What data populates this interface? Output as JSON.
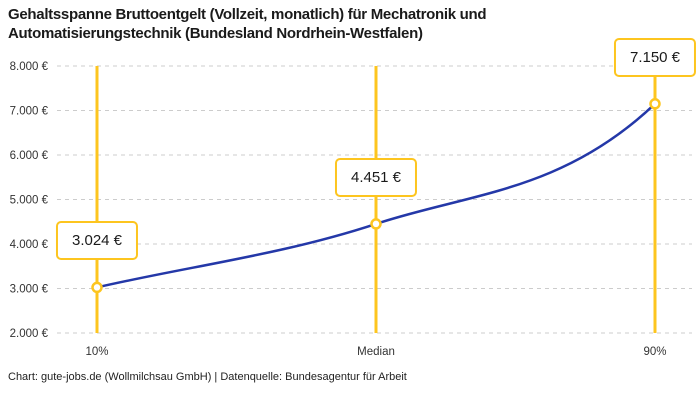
{
  "title_lines": [
    "Gehaltsspanne Bruttoentgelt (Vollzeit, monatlich) für Mechatronik und",
    "Automatisierungstechnik (Bundesland Nordrhein-Westfalen)"
  ],
  "footer": "Chart: gute-jobs.de (Wollmilchsau GmbH) | Datenquelle: Bundesagentur für Arbeit",
  "colors": {
    "accent_yellow": "#fdc51f",
    "curve_blue": "#2438a8",
    "grid_gray": "#cccccc",
    "text_dark": "#1a1a1a",
    "tick_gray": "#333333"
  },
  "chart_data": {
    "type": "line",
    "title": "Gehaltsspanne Bruttoentgelt (Vollzeit, monatlich) für Mechatronik und Automatisierungstechnik (Bundesland Nordrhein-Westfalen)",
    "categories": [
      "10%",
      "Median",
      "90%"
    ],
    "values": [
      3024,
      4451,
      7150
    ],
    "value_labels": [
      "3.024 €",
      "4.451 €",
      "7.150 €"
    ],
    "xlabel": "",
    "ylabel": "",
    "ylim": [
      2000,
      8000
    ],
    "yticks": [
      2000,
      3000,
      4000,
      5000,
      6000,
      7000,
      8000
    ],
    "ytick_labels": [
      "2.000 €",
      "3.000 €",
      "4.000 €",
      "5.000 €",
      "6.000 €",
      "7.000 €",
      "8.000 €"
    ],
    "grid": "horizontal-dashed",
    "legend": "none",
    "marker": "open-circle",
    "source": "Chart: gute-jobs.de (Wollmilchsau GmbH) | Datenquelle: Bundesagentur für Arbeit"
  }
}
